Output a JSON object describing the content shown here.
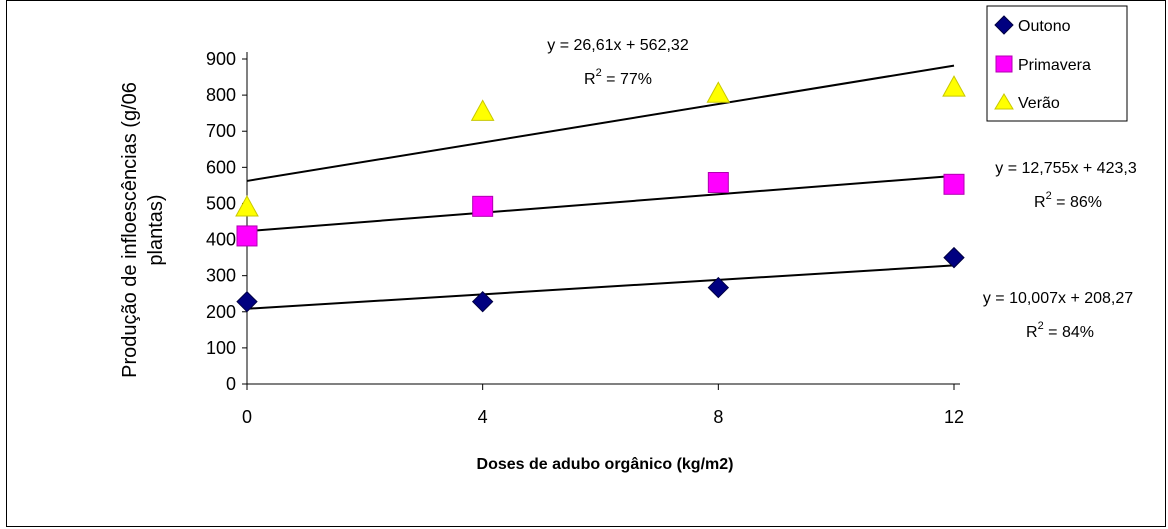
{
  "chart_data": {
    "type": "scatter",
    "title": "",
    "xlabel": "Doses de adubo orgânico (kg/m2)",
    "ylabel_line1": "Produção  de infloescências (g/06",
    "ylabel_line2": "plantas)",
    "x_ticks": [
      0,
      4,
      8,
      12
    ],
    "y_ticks": [
      0,
      100,
      200,
      300,
      400,
      500,
      600,
      700,
      800,
      900
    ],
    "xlim": [
      0,
      12
    ],
    "ylim": [
      0,
      900
    ],
    "grid": false,
    "legend_position": "top-right",
    "series": [
      {
        "name": "Outono",
        "marker": "diamond",
        "color": "#000080",
        "x": [
          0,
          4,
          8,
          12
        ],
        "y": [
          228,
          228,
          267,
          350
        ],
        "trendline": {
          "slope": 10.007,
          "intercept": 208.27
        },
        "equation": "y = 10,007x + 208,27",
        "r2_prefix": "R",
        "r2_exp": "2",
        "r2_suffix": " = 84%"
      },
      {
        "name": "Primavera",
        "marker": "square",
        "color": "#ff00ff",
        "x": [
          0,
          4,
          8,
          12
        ],
        "y": [
          410,
          492,
          558,
          553
        ],
        "trendline": {
          "slope": 12.755,
          "intercept": 423.3
        },
        "equation": "y = 12,755x + 423,3",
        "r2_prefix": "R",
        "r2_exp": "2",
        "r2_suffix": " = 86%"
      },
      {
        "name": "Verão",
        "marker": "triangle",
        "color": "#ffff00",
        "x": [
          0,
          4,
          8,
          12
        ],
        "y": [
          490,
          755,
          805,
          822
        ],
        "trendline": {
          "slope": 26.61,
          "intercept": 562.32
        },
        "equation": "y = 26,61x + 562,32",
        "r2_prefix": "R",
        "r2_exp": "2",
        "r2_suffix": " = 77%"
      }
    ]
  }
}
